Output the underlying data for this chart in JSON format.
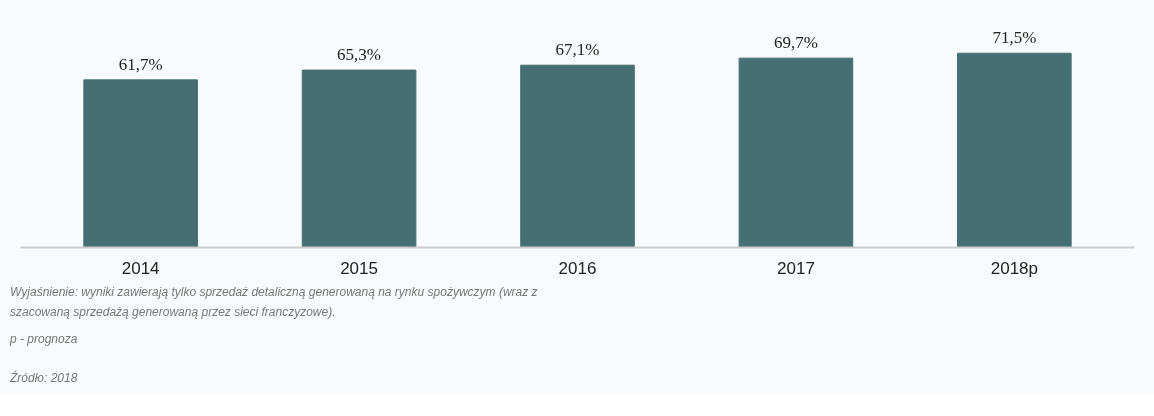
{
  "chart_data": {
    "type": "bar",
    "categories": [
      "2014",
      "2015",
      "2016",
      "2017",
      "2018p"
    ],
    "values": [
      61.7,
      65.3,
      67.1,
      69.7,
      71.5
    ],
    "value_labels": [
      "61,7%",
      "65,3%",
      "67,1%",
      "69,7%",
      "71,5%"
    ],
    "color": "#466f73",
    "grid": false,
    "annotations": [
      "Wyjaśnienie: wyniki zawierają tylko sprzedaż detaliczną generowaną na rynku spożywczym (wraz z szacowaną sprzedażą generowaną przez sieci franczyzowe).",
      "p - prognoza",
      "Źródło: 2018"
    ]
  }
}
